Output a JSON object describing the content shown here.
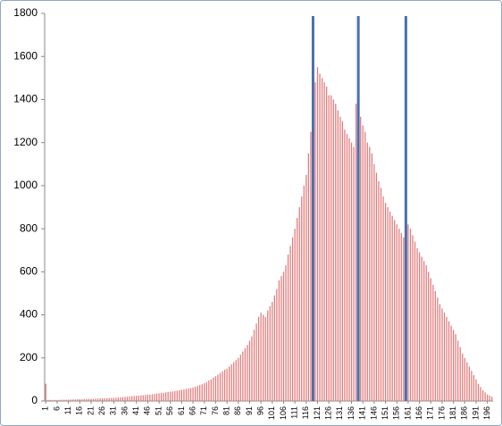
{
  "chart_data": {
    "type": "bar",
    "categories": [
      "1",
      null,
      null,
      null,
      null,
      "6",
      null,
      null,
      null,
      null,
      "11",
      null,
      null,
      null,
      null,
      "16",
      null,
      null,
      null,
      null,
      "21",
      null,
      null,
      null,
      null,
      "26",
      null,
      null,
      null,
      null,
      "31",
      null,
      null,
      null,
      null,
      "36",
      null,
      null,
      null,
      null,
      "41",
      null,
      null,
      null,
      null,
      "46",
      null,
      null,
      null,
      null,
      "51",
      null,
      null,
      null,
      null,
      "56",
      null,
      null,
      null,
      null,
      "61",
      null,
      null,
      null,
      null,
      "66",
      null,
      null,
      null,
      null,
      "71",
      null,
      null,
      null,
      null,
      "76",
      null,
      null,
      null,
      null,
      "81",
      null,
      null,
      null,
      null,
      "86",
      null,
      null,
      null,
      null,
      "91",
      null,
      null,
      null,
      null,
      "96",
      null,
      null,
      null,
      null,
      "101",
      null,
      null,
      null,
      null,
      "106",
      null,
      null,
      null,
      null,
      "111",
      null,
      null,
      null,
      null,
      "116",
      null,
      null,
      null,
      null,
      "121",
      null,
      null,
      null,
      null,
      "126",
      null,
      null,
      null,
      null,
      "131",
      null,
      null,
      null,
      null,
      "136",
      null,
      null,
      null,
      null,
      "141",
      null,
      null,
      null,
      null,
      "146",
      null,
      null,
      null,
      null,
      "151",
      null,
      null,
      null,
      null,
      "156",
      null,
      null,
      null,
      null,
      "161",
      null,
      null,
      null,
      null,
      "166",
      null,
      null,
      null,
      null,
      "171",
      null,
      null,
      null,
      null,
      "176",
      null,
      null,
      null,
      null,
      "181",
      null,
      null,
      null,
      null,
      "186",
      null,
      null,
      null,
      null,
      "191",
      null,
      null,
      null,
      null,
      "196",
      null,
      null
    ],
    "values": [
      80,
      5,
      5,
      5,
      5,
      5,
      5,
      6,
      6,
      6,
      6,
      7,
      7,
      7,
      8,
      8,
      8,
      9,
      9,
      10,
      10,
      10,
      11,
      11,
      12,
      12,
      13,
      13,
      14,
      14,
      15,
      15,
      16,
      17,
      18,
      19,
      20,
      21,
      22,
      23,
      24,
      25,
      26,
      27,
      28,
      29,
      30,
      31,
      33,
      35,
      36,
      37,
      38,
      40,
      42,
      43,
      44,
      46,
      48,
      50,
      52,
      54,
      56,
      58,
      60,
      63,
      66,
      70,
      74,
      78,
      82,
      88,
      95,
      100,
      108,
      115,
      122,
      130,
      138,
      145,
      150,
      160,
      170,
      180,
      190,
      200,
      215,
      230,
      245,
      260,
      280,
      300,
      330,
      360,
      390,
      410,
      400,
      390,
      420,
      440,
      460,
      490,
      520,
      560,
      580,
      600,
      630,
      680,
      720,
      760,
      800,
      850,
      900,
      950,
      1000,
      1050,
      1150,
      1250,
      1350,
      1480,
      1550,
      1520,
      1500,
      1480,
      1460,
      1420,
      1420,
      1400,
      1380,
      1350,
      1320,
      1300,
      1260,
      1240,
      1220,
      1200,
      1180,
      1380,
      1340,
      1320,
      1280,
      1250,
      1200,
      1180,
      1150,
      1100,
      1060,
      1020,
      990,
      950,
      920,
      900,
      880,
      860,
      840,
      820,
      800,
      780,
      760,
      740,
      820,
      800,
      770,
      740,
      710,
      690,
      670,
      650,
      630,
      600,
      570,
      540,
      510,
      480,
      450,
      430,
      410,
      390,
      370,
      350,
      330,
      310,
      280,
      250,
      220,
      200,
      180,
      160,
      140,
      120,
      100,
      80,
      65,
      50,
      40,
      30,
      25,
      20
    ],
    "color": "#e27a7a",
    "vlines": [
      119,
      139,
      160
    ],
    "vline_color": "#4a6fb0",
    "ylim": [
      0,
      1800
    ],
    "yticks": [
      0,
      200,
      400,
      600,
      800,
      1000,
      1200,
      1400,
      1600,
      1800
    ],
    "grid": false
  }
}
